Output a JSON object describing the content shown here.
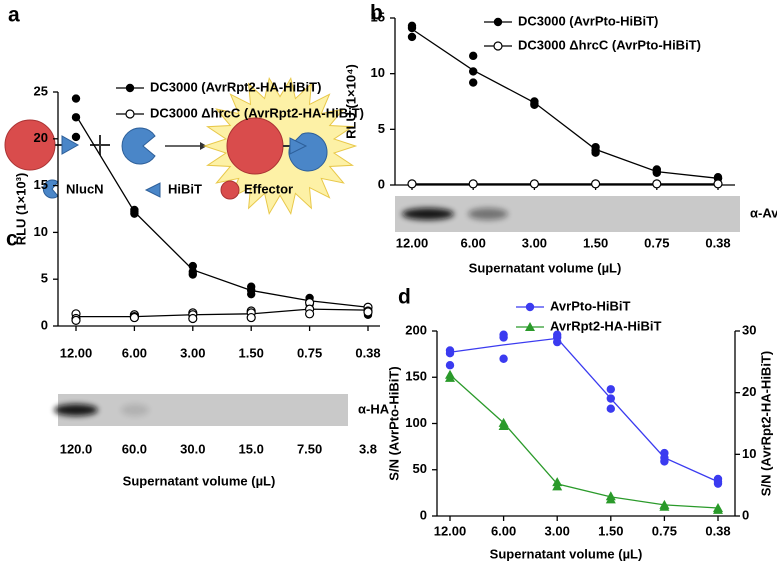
{
  "panel_a": {
    "label": "a",
    "legend": [
      "NlucN",
      "HiBiT",
      "Effector"
    ]
  },
  "chart_data": [
    {
      "type": "line",
      "panel_label": "b",
      "categories": [
        "12.00",
        "6.00",
        "3.00",
        "1.50",
        "0.75",
        "0.38"
      ],
      "x_label": "Supernatant volume (µL)",
      "y_label": "RLU (1×10⁴)",
      "ylim": [
        0,
        15
      ],
      "yticks": [
        0,
        5,
        10,
        15
      ],
      "blot_label": "α-AvrPto",
      "series": [
        {
          "name": "DC3000 (AvrPto-HiBiT)",
          "color": "#000000",
          "marker": "filled",
          "values": [
            14.0,
            10.3,
            7.4,
            3.2,
            1.2,
            0.6
          ],
          "replicates": [
            [
              14.3,
              14.1,
              13.3
            ],
            [
              11.6,
              10.2,
              9.2
            ],
            [
              7.5,
              7.3,
              7.2
            ],
            [
              3.4,
              3.1,
              2.9
            ],
            [
              1.4,
              1.2,
              1.1
            ],
            [
              0.7,
              0.6,
              0.6
            ]
          ]
        },
        {
          "name": "DC3000 ΔhrcC (AvrPto-HiBiT)",
          "color": "#000000",
          "marker": "open",
          "values": [
            0.1,
            0.1,
            0.1,
            0.1,
            0.1,
            0.1
          ],
          "replicates": [
            [
              0.1
            ],
            [
              0.1
            ],
            [
              0.1
            ],
            [
              0.1
            ],
            [
              0.1
            ],
            [
              0.1
            ]
          ]
        }
      ]
    },
    {
      "type": "line",
      "panel_label": "c",
      "categories": [
        "12.00",
        "6.00",
        "3.00",
        "1.50",
        "0.75",
        "0.38"
      ],
      "categories_2": [
        "120.0",
        "60.0",
        "30.0",
        "15.0",
        "7.50",
        "3.8"
      ],
      "x_label": "Supernatant volume (µL)",
      "y_label": "RLU (1×10³)",
      "ylim": [
        0,
        25
      ],
      "yticks": [
        0,
        5,
        10,
        15,
        20,
        25
      ],
      "blot_label": "α-HA",
      "series": [
        {
          "name": "DC3000 (AvrRpt2-HA-HiBiT)",
          "color": "#000000",
          "marker": "filled",
          "values": [
            22.5,
            12.2,
            6.0,
            3.8,
            2.7,
            2.0
          ],
          "replicates": [
            [
              24.3,
              22.3,
              20.2
            ],
            [
              12.4,
              12.2,
              12.0
            ],
            [
              6.4,
              5.8,
              5.5
            ],
            [
              4.2,
              3.8,
              3.4
            ],
            [
              3.0,
              2.6,
              2.3
            ],
            [
              2.0,
              1.8,
              1.2
            ]
          ]
        },
        {
          "name": "DC3000 ΔhrcC (AvrRpt2-HA-HiBiT)",
          "color": "#000000",
          "marker": "open",
          "values": [
            1.0,
            1.0,
            1.2,
            1.3,
            1.8,
            1.7
          ],
          "replicates": [
            [
              1.3,
              0.8,
              0.6
            ],
            [
              1.2,
              1.0,
              0.9
            ],
            [
              1.4,
              1.2,
              0.8
            ],
            [
              1.6,
              1.4,
              0.9
            ],
            [
              2.5,
              1.8,
              1.3
            ],
            [
              2.0,
              1.6,
              1.5
            ]
          ]
        }
      ]
    },
    {
      "type": "line",
      "panel_label": "d",
      "categories": [
        "12.00",
        "6.00",
        "3.00",
        "1.50",
        "0.75",
        "0.38"
      ],
      "x_label": "Supernatant volume (µL)",
      "y_label": "S/N (AvrPto-HiBiT)",
      "y2_label": "S/N (AvrRpt2-HA-HiBiT)",
      "ylim": [
        0,
        200
      ],
      "yticks": [
        0,
        50,
        100,
        150,
        200
      ],
      "y2lim": [
        0,
        30
      ],
      "y2ticks": [
        0,
        10,
        20,
        30
      ],
      "series": [
        {
          "name": "AvrPto-HiBiT",
          "color": "#3b3bf0",
          "marker": "circle",
          "values": [
            177,
            185,
            192,
            127,
            63,
            37
          ],
          "replicates": [
            [
              179,
              176,
              163
            ],
            [
              196,
              193,
              170
            ],
            [
              196,
              193,
              188
            ],
            [
              137,
              127,
              116
            ],
            [
              68,
              63,
              59
            ],
            [
              40,
              37,
              35
            ]
          ]
        },
        {
          "name": "AvrRpt2-HA-HiBiT",
          "color": "#2a9a2a",
          "marker": "triangle",
          "axis": "y2",
          "values": [
            22.9,
            15.1,
            5.2,
            3.1,
            1.8,
            1.3
          ],
          "replicates": [
            [
              22.9,
              22.4
            ],
            [
              15.1,
              14.6
            ],
            [
              5.5,
              4.8
            ],
            [
              3.2,
              2.7
            ],
            [
              1.8,
              1.5
            ],
            [
              1.3,
              1.0
            ]
          ]
        }
      ]
    }
  ]
}
